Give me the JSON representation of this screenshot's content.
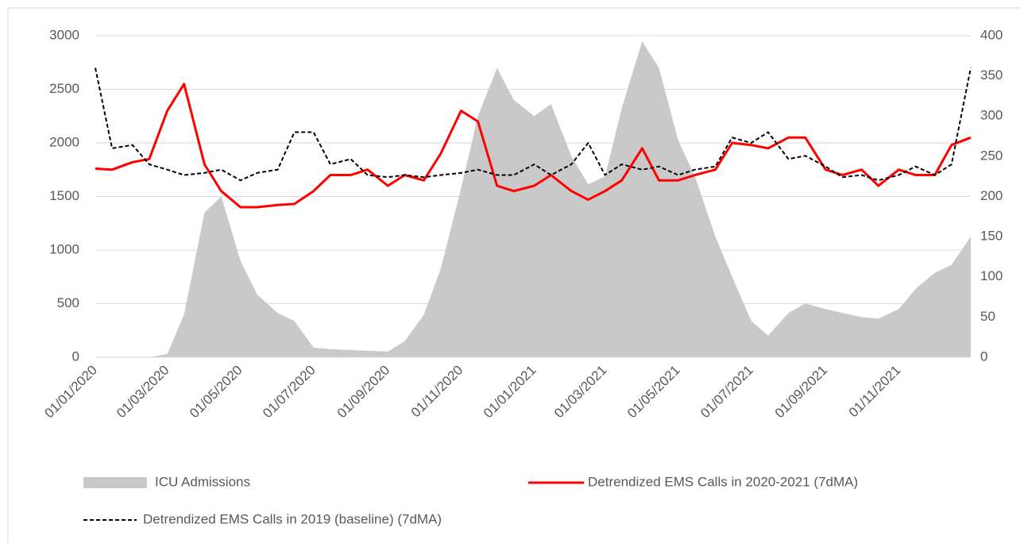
{
  "chart_data": {
    "type": "line",
    "x": [
      "01/01/2020",
      "15/01/2020",
      "01/02/2020",
      "15/02/2020",
      "01/03/2020",
      "15/03/2020",
      "01/04/2020",
      "15/04/2020",
      "01/05/2020",
      "15/05/2020",
      "01/06/2020",
      "15/06/2020",
      "01/07/2020",
      "15/07/2020",
      "01/08/2020",
      "15/08/2020",
      "01/09/2020",
      "15/09/2020",
      "01/10/2020",
      "15/10/2020",
      "01/11/2020",
      "15/11/2020",
      "01/12/2020",
      "15/12/2020",
      "01/01/2021",
      "15/01/2021",
      "01/02/2021",
      "15/02/2021",
      "01/03/2021",
      "15/03/2021",
      "01/04/2021",
      "15/04/2021",
      "01/05/2021",
      "15/05/2021",
      "01/06/2021",
      "15/06/2021",
      "01/07/2021",
      "15/07/2021",
      "01/08/2021",
      "15/08/2021",
      "01/09/2021",
      "15/09/2021",
      "01/10/2021",
      "15/10/2021",
      "01/11/2021",
      "15/11/2021",
      "01/12/2021",
      "15/12/2021",
      "31/12/2021"
    ],
    "series": [
      {
        "name": "ICU Admissions",
        "color": "#c9c9c9",
        "axis": "y2",
        "kind": "area",
        "values": [
          0,
          0,
          0,
          0,
          4,
          53,
          180,
          200,
          120,
          78,
          55,
          45,
          12,
          10,
          9,
          8,
          7,
          20,
          53,
          110,
          210,
          300,
          360,
          320,
          300,
          315,
          250,
          215,
          225,
          310,
          393,
          360,
          270,
          225,
          150,
          100,
          45,
          27,
          55,
          67,
          60,
          55,
          50,
          48,
          60,
          85,
          105,
          115,
          150
        ]
      },
      {
        "name": "Detrendized EMS Calls in 2020-2021 (7dMA)",
        "color": "#ff0000",
        "kind": "line",
        "values": [
          1760,
          1750,
          1820,
          1850,
          2300,
          2550,
          1800,
          1550,
          1400,
          1400,
          1420,
          1430,
          1550,
          1700,
          1700,
          1750,
          1600,
          1700,
          1650,
          1900,
          2300,
          2200,
          1600,
          1550,
          1600,
          1700,
          1550,
          1470,
          1550,
          1650,
          1950,
          1650,
          1650,
          1700,
          1750,
          2000,
          1980,
          1950,
          2050,
          2050,
          1750,
          1700,
          1750,
          1600,
          1750,
          1700,
          1700,
          1980,
          2050
        ]
      },
      {
        "name": "Detrendized EMS Calls in 2019 (baseline) (7dMA)",
        "color": "#000000",
        "kind": "dashed",
        "values": [
          2700,
          1950,
          1980,
          1800,
          1750,
          1700,
          1720,
          1750,
          1650,
          1720,
          1750,
          2100,
          2100,
          1800,
          1850,
          1700,
          1680,
          1700,
          1680,
          1700,
          1720,
          1750,
          1700,
          1700,
          1800,
          1700,
          1800,
          2000,
          1700,
          1800,
          1750,
          1780,
          1700,
          1750,
          1780,
          2050,
          2000,
          2100,
          1850,
          1880,
          1780,
          1680,
          1700,
          1650,
          1700,
          1780,
          1700,
          1800,
          2700
        ]
      }
    ],
    "xlim": [
      "01/01/2020",
      "31/12/2021"
    ],
    "xticks": [
      "01/01/2020",
      "01/03/2020",
      "01/05/2020",
      "01/07/2020",
      "01/09/2020",
      "01/11/2020",
      "01/01/2021",
      "01/03/2021",
      "01/05/2021",
      "01/07/2021",
      "01/09/2021",
      "01/11/2021"
    ],
    "ylim": [
      0,
      3000
    ],
    "yticks": [
      0,
      500,
      1000,
      1500,
      2000,
      2500,
      3000
    ],
    "y2lim": [
      0,
      400
    ],
    "y2ticks": [
      0,
      50,
      100,
      150,
      200,
      250,
      300,
      350,
      400
    ],
    "grid": true
  }
}
